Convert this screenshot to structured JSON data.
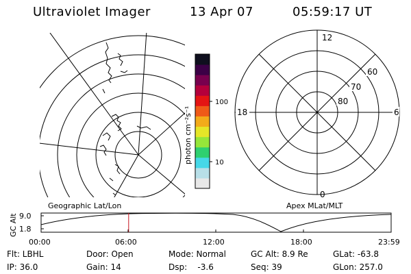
{
  "header": {
    "title": "Ultraviolet Imager",
    "date": "13 Apr 07",
    "time": "05:59:17 UT"
  },
  "colorbar": {
    "label": "photon cm⁻²s⁻¹",
    "ticks": [
      "100",
      "10"
    ],
    "scale": "log",
    "colors": [
      "#e8e8e8",
      "#b8dfe8",
      "#46d8e8",
      "#2fd070",
      "#96e63a",
      "#e6e628",
      "#f3ab1a",
      "#ef5a18",
      "#e41414",
      "#b4003c",
      "#78004e",
      "#3c0046",
      "#0f0f1e"
    ]
  },
  "geo_map": {
    "caption": "Geographic Lat/Lon"
  },
  "apex_map": {
    "caption": "Apex MLat/MLT",
    "mlt_labels": {
      "top": "12",
      "left": "18",
      "right": "6",
      "bottom": "0"
    },
    "lat_labels": [
      "60",
      "70",
      "80"
    ]
  },
  "timeline": {
    "ylabel": "GC Alt",
    "yticks": [
      "9.0",
      "1.8"
    ],
    "xticks": [
      "00:00",
      "06:00",
      "12:00",
      "18:00",
      "23:59"
    ],
    "current_time_fraction": 0.25
  },
  "info": {
    "row1": {
      "flt": "Flt: LBHL",
      "door": "Door: Open",
      "mode": "Mode: Normal",
      "gcalt": "GC Alt: 8.9 Re",
      "glat": "GLat: -63.8"
    },
    "row2": {
      "ip": "IP: 36.0",
      "gain": "Gain: 14",
      "dsp": "Dsp:    -3.6",
      "seq": "Seq: 39",
      "glon": "GLon: 257.0"
    }
  }
}
